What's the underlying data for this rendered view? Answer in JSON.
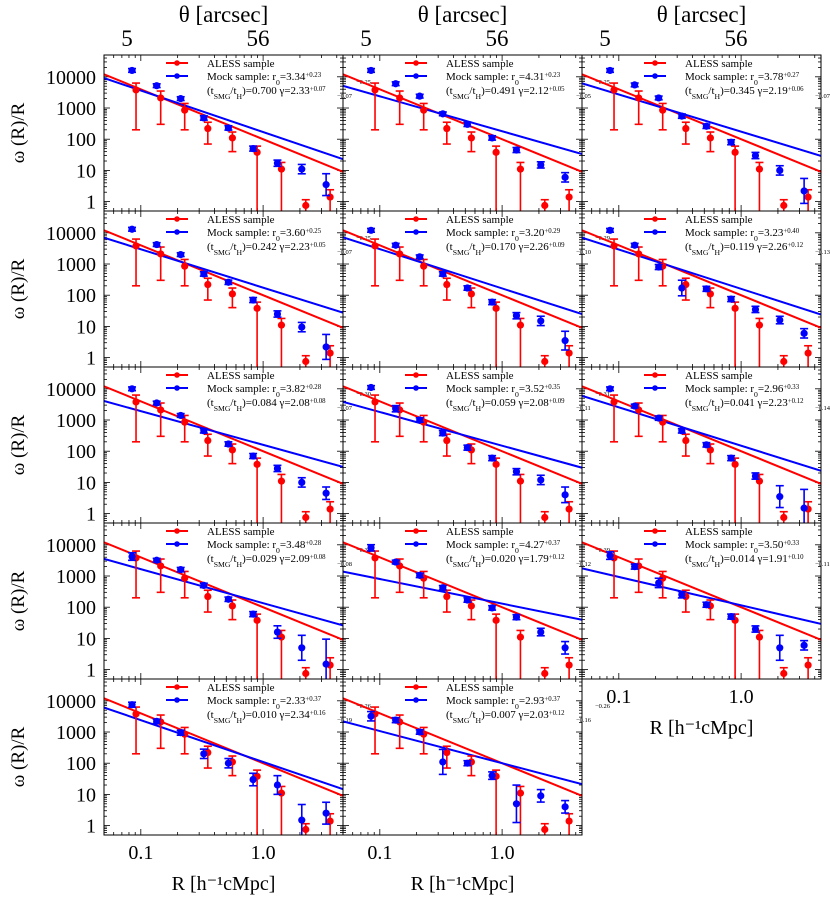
{
  "figure": {
    "top_axis_label": "θ  [arcsec]",
    "top_ticks": [
      "5",
      "56"
    ],
    "x_axis_label": "R [h⁻¹cMpc]",
    "y_axis_label": "ω (R)/R",
    "x_tick_labels": [
      "0.1",
      "1.0"
    ],
    "y_tick_labels": [
      "10000",
      "1000",
      "100",
      "10",
      "1"
    ],
    "legend_ref": "ALESS sample",
    "legend_mock_prefix": "Mock sample:",
    "ratio_label": "(t_SMG/t_H)",
    "colors": {
      "aless": "#ff0000",
      "mock": "#0000ff"
    }
  },
  "chart_data": {
    "type": "scatter",
    "x_scale": "log",
    "y_scale": "log",
    "xlim": [
      0.05,
      4.5
    ],
    "ylim": [
      0.5,
      50000
    ],
    "aless": {
      "name": "ALESS sample",
      "color": "#ff0000",
      "x": [
        0.088,
        0.14,
        0.22,
        0.34,
        0.54,
        0.86,
        1.36,
        2.15,
        3.4
      ],
      "y": [
        3800,
        2100,
        850,
        220,
        110,
        38,
        11,
        0.75,
        1.4
      ],
      "yerr_low": [
        3600,
        1800,
        650,
        150,
        70,
        37.5,
        10.5,
        0.3,
        1.2
      ],
      "yerr_high": [
        2500,
        1400,
        550,
        130,
        60,
        22,
        7,
        0.4,
        1.0
      ],
      "fit_amp": 100,
      "fit_slope": -1.6
    },
    "panels": [
      {
        "r0": "3.34",
        "r0_up": "+0.23",
        "r0_lo": "−0.25",
        "ratio": "0.700",
        "gamma": "2.33",
        "g_up": "+0.07",
        "g_lo": "−0.07",
        "fit_amp": 170,
        "x": [
          0.088,
          0.14,
          0.22,
          0.34,
          0.54,
          0.86,
          1.36,
          2.15,
          3.4
        ],
        "y": [
          16000,
          5200,
          2000,
          480,
          230,
          50,
          17,
          11,
          3.5
        ],
        "e": [
          0.06,
          0.06,
          0.06,
          0.07,
          0.07,
          0.08,
          0.1,
          0.15,
          0.35
        ]
      },
      {
        "r0": "4.31",
        "r0_up": "+0.23",
        "r0_lo": "−0.25",
        "ratio": "0.491",
        "gamma": "2.12",
        "g_up": "+0.05",
        "g_lo": "−0.05",
        "fit_amp": 180,
        "x": [
          0.088,
          0.14,
          0.22,
          0.34,
          0.54,
          0.86,
          1.36,
          2.15,
          3.4
        ],
        "y": [
          16000,
          6000,
          2400,
          650,
          300,
          110,
          45,
          15,
          6
        ],
        "e": [
          0.06,
          0.06,
          0.06,
          0.06,
          0.07,
          0.07,
          0.08,
          0.1,
          0.15
        ]
      },
      {
        "r0": "3.78",
        "r0_up": "+0.27",
        "r0_lo": "−0.26",
        "ratio": "0.345",
        "gamma": "2.19",
        "g_up": "+0.06",
        "g_lo": "−0.07",
        "fit_amp": 175,
        "x": [
          0.088,
          0.14,
          0.22,
          0.34,
          0.54,
          0.86,
          1.36,
          2.15,
          3.4
        ],
        "y": [
          16000,
          5500,
          2100,
          550,
          260,
          80,
          30,
          10,
          2.2
        ],
        "e": [
          0.06,
          0.06,
          0.06,
          0.07,
          0.07,
          0.08,
          0.1,
          0.15,
          0.4
        ]
      },
      {
        "r0": "3.60",
        "r0_up": "+0.25",
        "r0_lo": "−0.25",
        "ratio": "0.242",
        "gamma": "2.23",
        "g_up": "+0.05",
        "g_lo": "−0.07",
        "fit_amp": 175,
        "x": [
          0.088,
          0.14,
          0.22,
          0.34,
          0.54,
          0.86,
          1.36,
          2.15,
          3.4
        ],
        "y": [
          13000,
          4200,
          2000,
          480,
          260,
          70,
          25,
          9.5,
          2.2
        ],
        "e": [
          0.06,
          0.06,
          0.06,
          0.07,
          0.07,
          0.08,
          0.1,
          0.15,
          0.4
        ]
      },
      {
        "r0": "3.20",
        "r0_up": "+0.29",
        "r0_lo": "−0.29",
        "ratio": "0.170",
        "gamma": "2.26",
        "g_up": "+0.09",
        "g_lo": "−0.10",
        "fit_amp": 165,
        "x": [
          0.088,
          0.14,
          0.22,
          0.34,
          0.54,
          0.86,
          1.36,
          2.15,
          3.4
        ],
        "y": [
          12000,
          4000,
          1700,
          480,
          170,
          60,
          22,
          15,
          3.5
        ],
        "e": [
          0.06,
          0.06,
          0.06,
          0.07,
          0.07,
          0.08,
          0.1,
          0.15,
          0.3
        ]
      },
      {
        "r0": "3.23",
        "r0_up": "+0.40",
        "r0_lo": "−0.40",
        "ratio": "0.119",
        "gamma": "2.26",
        "g_up": "+0.12",
        "g_lo": "−0.13",
        "fit_amp": 160,
        "x": [
          0.088,
          0.14,
          0.22,
          0.34,
          0.54,
          0.86,
          1.36,
          2.15,
          3.4
        ],
        "y": [
          12000,
          4000,
          800,
          170,
          160,
          75,
          35,
          16,
          6
        ],
        "e": [
          0.06,
          0.06,
          0.08,
          0.25,
          0.08,
          0.08,
          0.1,
          0.12,
          0.15
        ]
      },
      {
        "r0": "3.82",
        "r0_up": "+0.28",
        "r0_lo": "−0.30",
        "ratio": "0.084",
        "gamma": "2.08",
        "g_up": "+0.08",
        "g_lo": "−0.07",
        "fit_amp": 160,
        "x": [
          0.088,
          0.14,
          0.22,
          0.34,
          0.54,
          0.86,
          1.36,
          2.15,
          3.4
        ],
        "y": [
          10000,
          3500,
          1400,
          450,
          170,
          70,
          28,
          10,
          4.5
        ],
        "e": [
          0.06,
          0.06,
          0.06,
          0.07,
          0.07,
          0.08,
          0.1,
          0.15,
          0.2
        ]
      },
      {
        "r0": "3.52",
        "r0_up": "+0.35",
        "r0_lo": "−0.31",
        "ratio": "0.059",
        "gamma": "2.08",
        "g_up": "+0.09",
        "g_lo": "−0.11",
        "fit_amp": 150,
        "x": [
          0.088,
          0.14,
          0.22,
          0.34,
          0.54,
          0.86,
          1.36,
          2.15,
          3.4
        ],
        "y": [
          11000,
          2300,
          1000,
          380,
          130,
          60,
          22,
          12,
          4
        ],
        "e": [
          0.06,
          0.1,
          0.07,
          0.08,
          0.08,
          0.08,
          0.1,
          0.15,
          0.25
        ]
      },
      {
        "r0": "2.96",
        "r0_up": "+0.33",
        "r0_lo": "−0.34",
        "ratio": "0.041",
        "gamma": "2.23",
        "g_up": "+0.12",
        "g_lo": "−0.14",
        "fit_amp": 150,
        "x": [
          0.088,
          0.14,
          0.22,
          0.34,
          0.54,
          0.86,
          1.36,
          2.15,
          3.4
        ],
        "y": [
          10000,
          2800,
          1150,
          450,
          160,
          60,
          16,
          3.5,
          1.5
        ],
        "e": [
          0.06,
          0.06,
          0.07,
          0.07,
          0.07,
          0.08,
          0.1,
          0.35,
          0.6
        ]
      },
      {
        "r0": "3.48",
        "r0_up": "+0.28",
        "r0_lo": "−0.32",
        "ratio": "0.029",
        "gamma": "2.09",
        "g_up": "+0.08",
        "g_lo": "−0.08",
        "fit_amp": 135,
        "x": [
          0.088,
          0.14,
          0.22,
          0.34,
          0.54,
          0.86,
          1.36,
          2.15,
          3.4
        ],
        "y": [
          4200,
          3200,
          1600,
          500,
          180,
          60,
          16,
          5,
          1.5
        ],
        "e": [
          0.12,
          0.06,
          0.07,
          0.07,
          0.07,
          0.08,
          0.2,
          0.4,
          0.8
        ]
      },
      {
        "r0": "4.27",
        "r0_up": "+0.37",
        "r0_lo": "−0.39",
        "ratio": "0.020",
        "gamma": "1.79",
        "g_up": "+0.12",
        "g_lo": "−0.12",
        "fit_amp": 130,
        "x": [
          0.088,
          0.14,
          0.22,
          0.34,
          0.54,
          0.86,
          1.36,
          2.15,
          3.4
        ],
        "y": [
          8000,
          2800,
          1050,
          420,
          170,
          95,
          48,
          16,
          5
        ],
        "e": [
          0.1,
          0.06,
          0.07,
          0.07,
          0.07,
          0.07,
          0.08,
          0.12,
          0.2
        ]
      },
      {
        "r0": "3.50",
        "r0_up": "+0.33",
        "r0_lo": "−0.35",
        "ratio": "0.014",
        "gamma": "1.91",
        "g_up": "+0.10",
        "g_lo": "−0.11",
        "fit_amp": 115,
        "x": [
          0.088,
          0.14,
          0.22,
          0.34,
          0.54,
          0.86,
          1.36,
          2.15,
          3.4
        ],
        "y": [
          4500,
          2000,
          600,
          250,
          120,
          50,
          20,
          5,
          6
        ],
        "e": [
          0.12,
          0.08,
          0.15,
          0.1,
          0.08,
          0.08,
          0.1,
          0.4,
          0.15
        ]
      },
      {
        "r0": "2.33",
        "r0_up": "+0.37",
        "r0_lo": "−0.26",
        "ratio": "0.010",
        "gamma": "2.34",
        "g_up": "+0.16",
        "g_lo": "−0.19",
        "fit_amp": 110,
        "x": [
          0.088,
          0.14,
          0.22,
          0.34,
          0.54,
          0.86,
          1.36,
          2.15,
          3.4
        ],
        "y": [
          7500,
          2200,
          950,
          200,
          100,
          30,
          20,
          1.5,
          2.5
        ],
        "e": [
          0.08,
          0.07,
          0.08,
          0.15,
          0.15,
          0.2,
          0.3,
          0.5,
          0.35
        ]
      },
      {
        "r0": "2.93",
        "r0_up": "+0.37",
        "r0_lo": "−0.26",
        "ratio": "0.007",
        "gamma": "2.03",
        "g_up": "+0.12",
        "g_lo": "−0.16",
        "fit_amp": 100,
        "x": [
          0.088,
          0.14,
          0.22,
          0.34,
          0.54,
          0.86,
          1.36,
          2.15,
          3.4
        ],
        "y": [
          3200,
          2400,
          1000,
          110,
          100,
          40,
          5,
          9,
          4
        ],
        "e": [
          0.15,
          0.08,
          0.07,
          0.4,
          0.08,
          0.12,
          0.6,
          0.2,
          0.2
        ]
      }
    ]
  }
}
